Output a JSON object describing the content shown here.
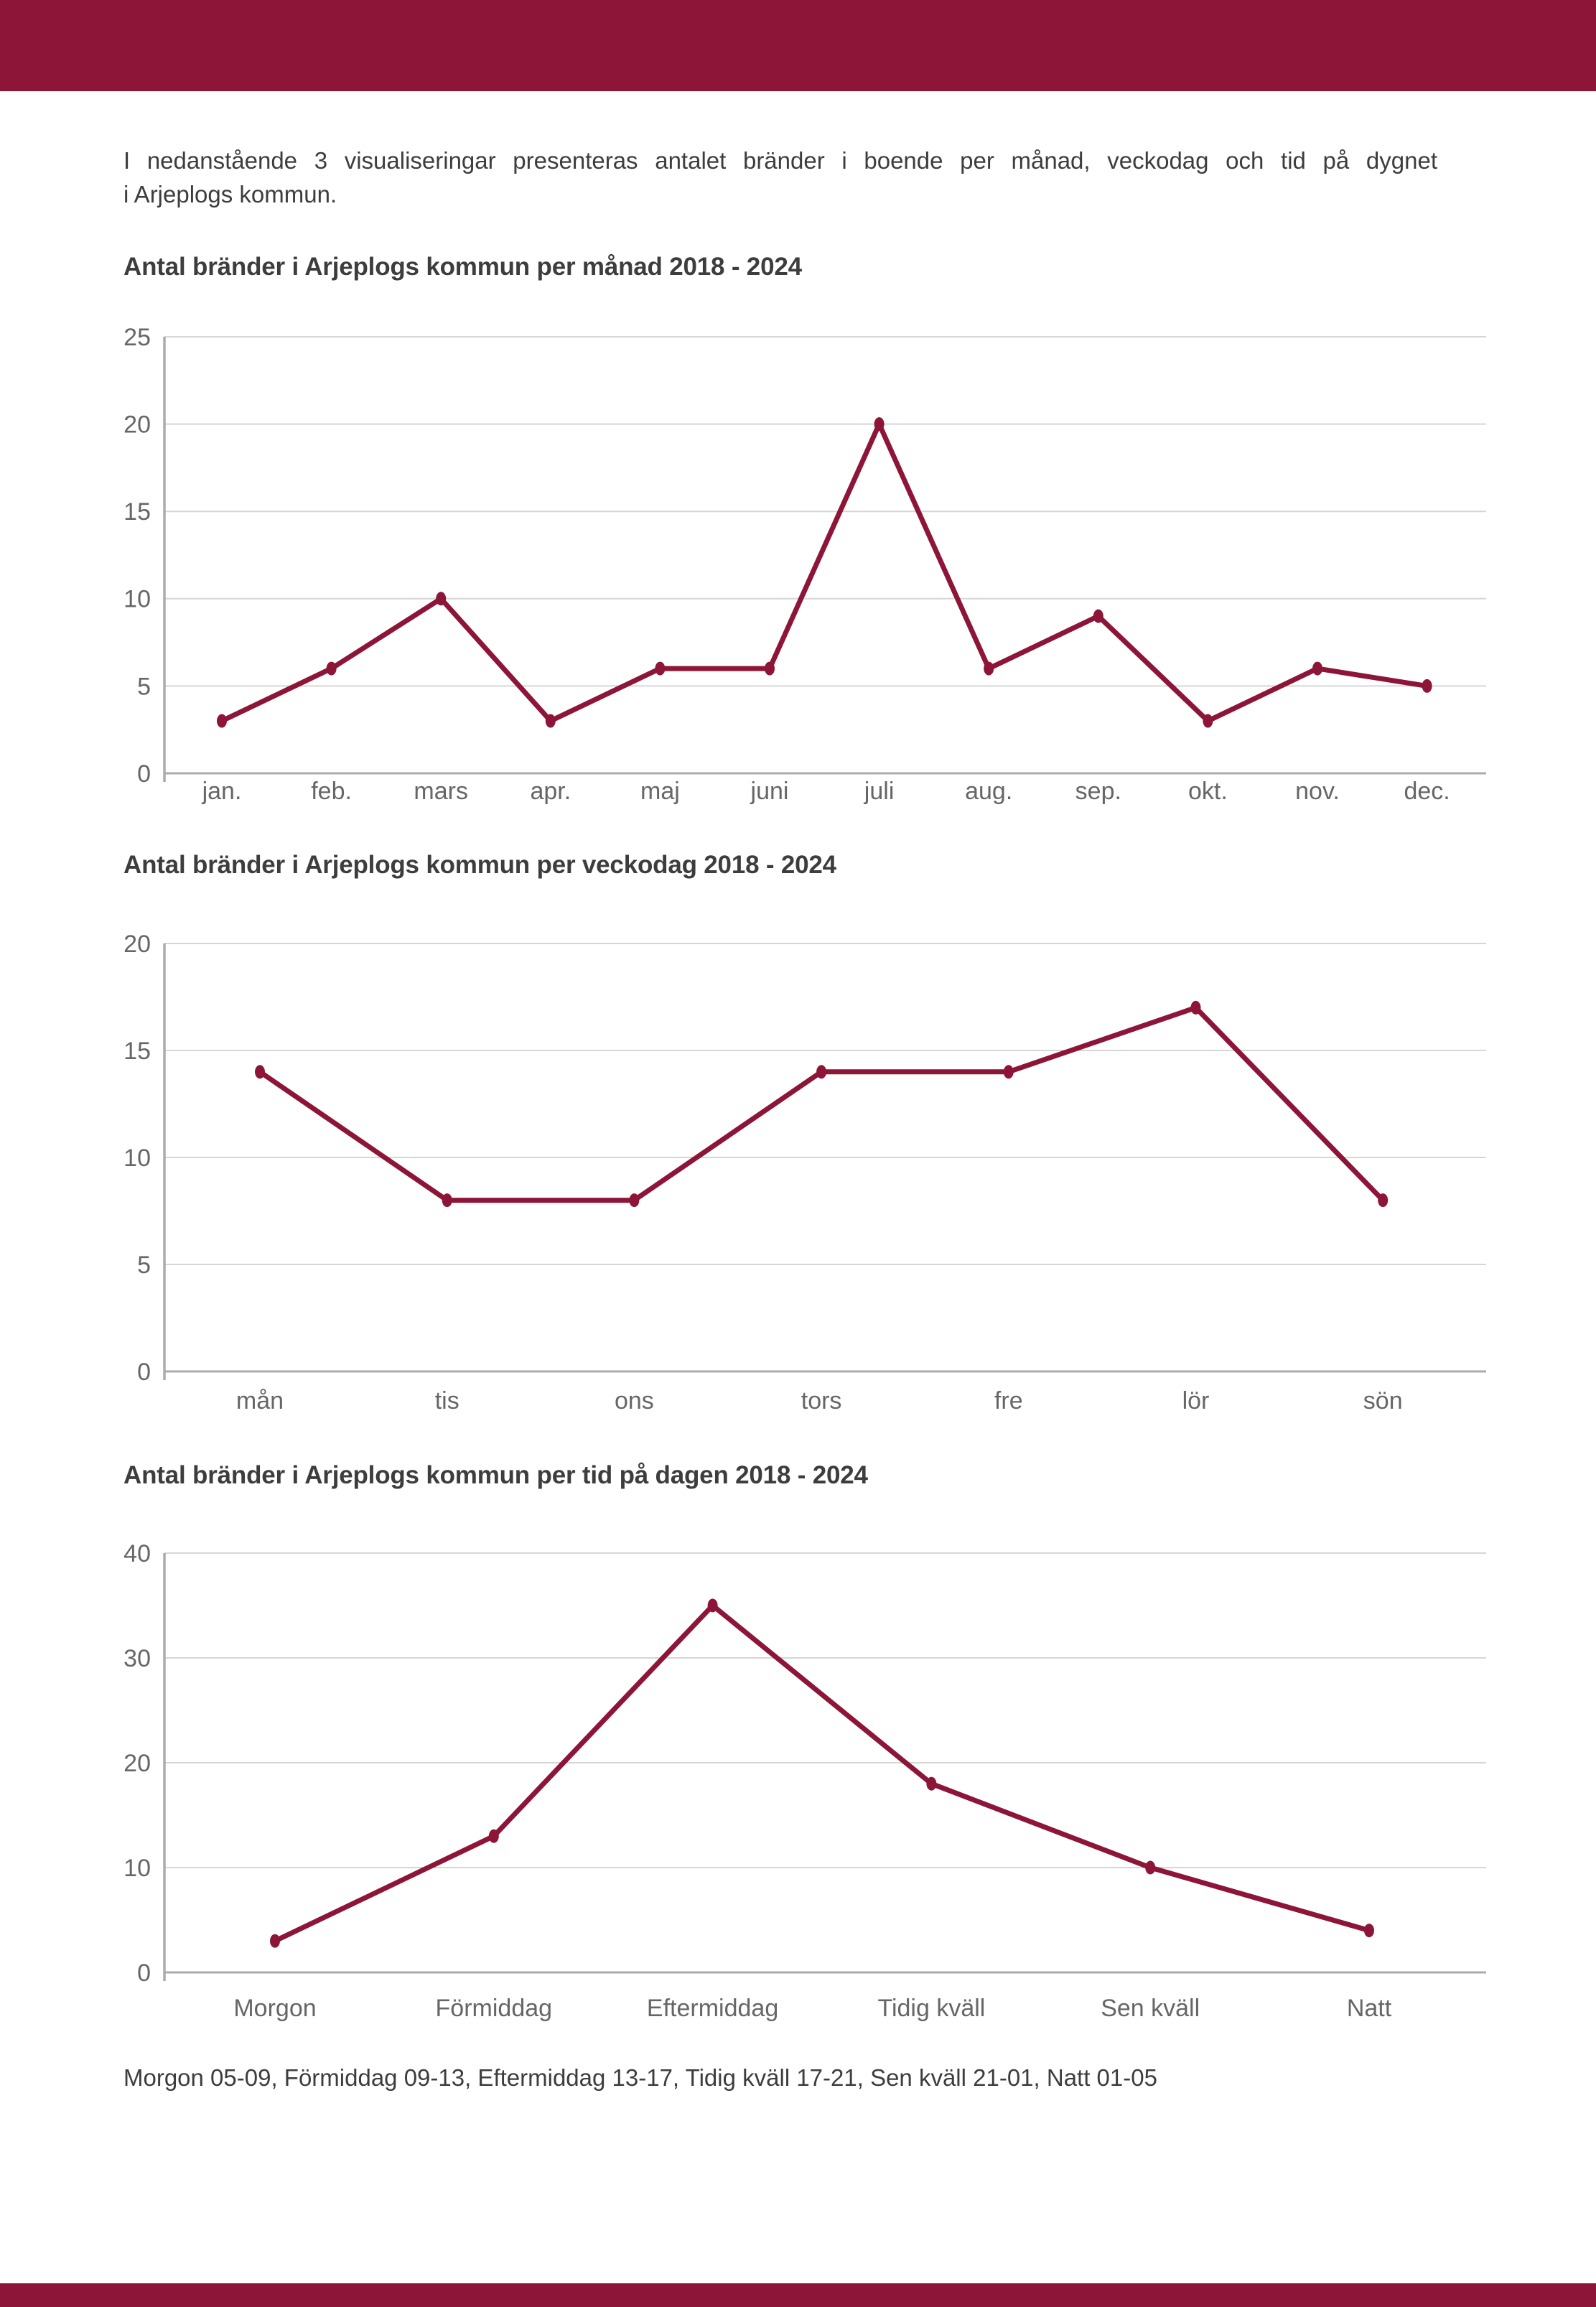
{
  "page": {
    "intro_lines": [
      "I nedanstående 3 visualiseringar presenteras antalet bränder i boende per månad, veckodag och tid på dygnet",
      "i Arjeplogs kommun."
    ],
    "footnote": "Morgon 05-09, Förmiddag 09-13, Eftermiddag 13-17, Tidig kväll 17-21, Sen kväll 21-01, Natt 01-05",
    "colors": {
      "accent": "#8C1538",
      "grid": "#D6D6D6",
      "axis": "#ABABAB",
      "text": "#3D3D3D",
      "tick_text": "#666666"
    }
  },
  "chart_data": [
    {
      "type": "line",
      "title": "Antal bränder i Arjeplogs kommun per månad 2018 - 2024",
      "categories": [
        "jan.",
        "feb.",
        "mars",
        "apr.",
        "maj",
        "juni",
        "juli",
        "aug.",
        "sep.",
        "okt.",
        "nov.",
        "dec."
      ],
      "values": [
        3,
        6,
        10,
        3,
        6,
        6,
        20,
        6,
        9,
        3,
        6,
        5
      ],
      "ylim": [
        0,
        25
      ],
      "yticks": [
        0,
        5,
        10,
        15,
        20,
        25
      ],
      "grid": true,
      "legend": "none",
      "line_color": "#8C1538"
    },
    {
      "type": "line",
      "title": "Antal bränder i Arjeplogs kommun per veckodag 2018 - 2024",
      "categories": [
        "mån",
        "tis",
        "ons",
        "tors",
        "fre",
        "lör",
        "sön"
      ],
      "values": [
        14,
        8,
        8,
        14,
        14,
        17,
        8
      ],
      "ylim": [
        0,
        20
      ],
      "yticks": [
        0,
        5,
        10,
        15,
        20
      ],
      "grid": true,
      "legend": "none",
      "line_color": "#8C1538"
    },
    {
      "type": "line",
      "title": "Antal bränder i Arjeplogs kommun per tid på dagen 2018 - 2024",
      "categories": [
        "Morgon",
        "Förmiddag",
        "Eftermiddag",
        "Tidig kväll",
        "Sen kväll",
        "Natt"
      ],
      "values": [
        3,
        13,
        35,
        18,
        10,
        4
      ],
      "ylim": [
        0,
        40
      ],
      "yticks": [
        0,
        10,
        20,
        30,
        40
      ],
      "grid": true,
      "legend": "none",
      "line_color": "#8C1538"
    }
  ]
}
